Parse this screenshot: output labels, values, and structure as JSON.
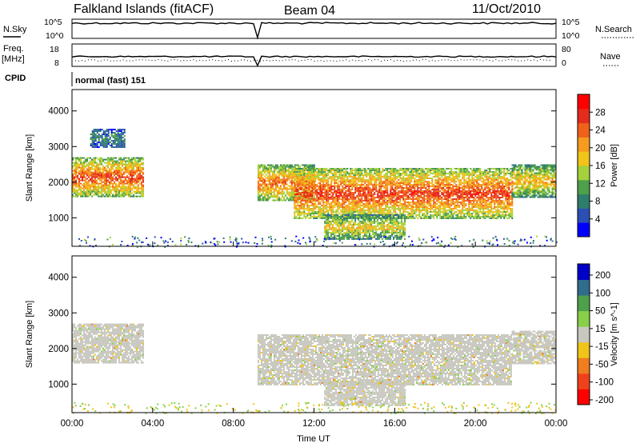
{
  "header": {
    "title": "Falkland Islands (fitACF)",
    "beam": "Beam 04",
    "date": "11/Oct/2010"
  },
  "strip": {
    "nsky_label": "N.Sky",
    "nsearch_label": "N.Search",
    "freq_label": "Freq.",
    "freq_unit": "[MHz]",
    "nave_label": "Nave",
    "cpid_label": "CPID",
    "cpid_value": "normal (fast) 151",
    "nsky_ticks": [
      "10^5",
      "10^0"
    ],
    "nsearch_ticks": [
      "10^5",
      "10^0"
    ],
    "freq_ticks": [
      "18",
      "8"
    ],
    "nave_ticks": [
      "80",
      "0"
    ]
  },
  "colors": {
    "power_scale": [
      "#0000ff",
      "#2a4fb5",
      "#2f7d6d",
      "#4ea04a",
      "#a5d23c",
      "#f0c419",
      "#f59b1e",
      "#f0611a",
      "#e32c1c",
      "#ff0000"
    ],
    "velocity_scale": [
      "#ff0000",
      "#f0421a",
      "#f07d1e",
      "#f0c419",
      "#c8c8c0",
      "#88d048",
      "#4ea04a",
      "#2f6d8c",
      "#0000c8"
    ]
  },
  "chart_data": [
    {
      "type": "heatmap",
      "name": "power",
      "xlabel": "",
      "ylabel": "Slant Range [km]",
      "xlim": [
        "00:00",
        "24:00"
      ],
      "ylim": [
        200,
        4600
      ],
      "x_ticks": [
        "00:00",
        "04:00",
        "08:00",
        "12:00",
        "16:00",
        "20:00",
        "00:00"
      ],
      "y_ticks": [
        1000,
        2000,
        3000,
        4000
      ],
      "colorbar": {
        "label": "Power [dB]",
        "ticks": [
          4,
          8,
          12,
          16,
          20,
          24,
          28
        ],
        "range": [
          0,
          32
        ]
      },
      "regions": [
        {
          "t0": 0.0,
          "t1": 3.5,
          "r0": 1600,
          "r1": 2700,
          "value": 26
        },
        {
          "t0": 0.9,
          "t1": 2.6,
          "r0": 3000,
          "r1": 3500,
          "value": 9
        },
        {
          "t0": 9.2,
          "t1": 12.0,
          "r0": 1500,
          "r1": 2500,
          "value": 24
        },
        {
          "t0": 11.0,
          "t1": 21.8,
          "r0": 1000,
          "r1": 2400,
          "value": 27
        },
        {
          "t0": 12.5,
          "t1": 16.5,
          "r0": 400,
          "r1": 1100,
          "value": 18
        },
        {
          "t0": 21.8,
          "t1": 24.0,
          "r0": 1600,
          "r1": 2500,
          "value": 20
        }
      ]
    },
    {
      "type": "heatmap",
      "name": "velocity",
      "xlabel": "Time UT",
      "ylabel": "Slant Range [km]",
      "xlim": [
        "00:00",
        "24:00"
      ],
      "ylim": [
        200,
        4600
      ],
      "x_ticks": [
        "00:00",
        "04:00",
        "08:00",
        "12:00",
        "16:00",
        "20:00",
        "00:00"
      ],
      "y_ticks": [
        1000,
        2000,
        3000,
        4000
      ],
      "colorbar": {
        "label": "Velocity [m s^-1]",
        "ticks": [
          200,
          100,
          50,
          15,
          -15,
          -50,
          -100,
          -200
        ]
      },
      "regions": [
        {
          "t0": 0.0,
          "t1": 3.5,
          "r0": 1600,
          "r1": 2700,
          "value": 0
        },
        {
          "t0": 9.2,
          "t1": 21.8,
          "r0": 1000,
          "r1": 2400,
          "value": 0
        },
        {
          "t0": 12.5,
          "t1": 16.5,
          "r0": 400,
          "r1": 1100,
          "value": 5
        },
        {
          "t0": 21.8,
          "t1": 24.0,
          "r0": 1600,
          "r1": 2500,
          "value": 0
        }
      ]
    }
  ]
}
